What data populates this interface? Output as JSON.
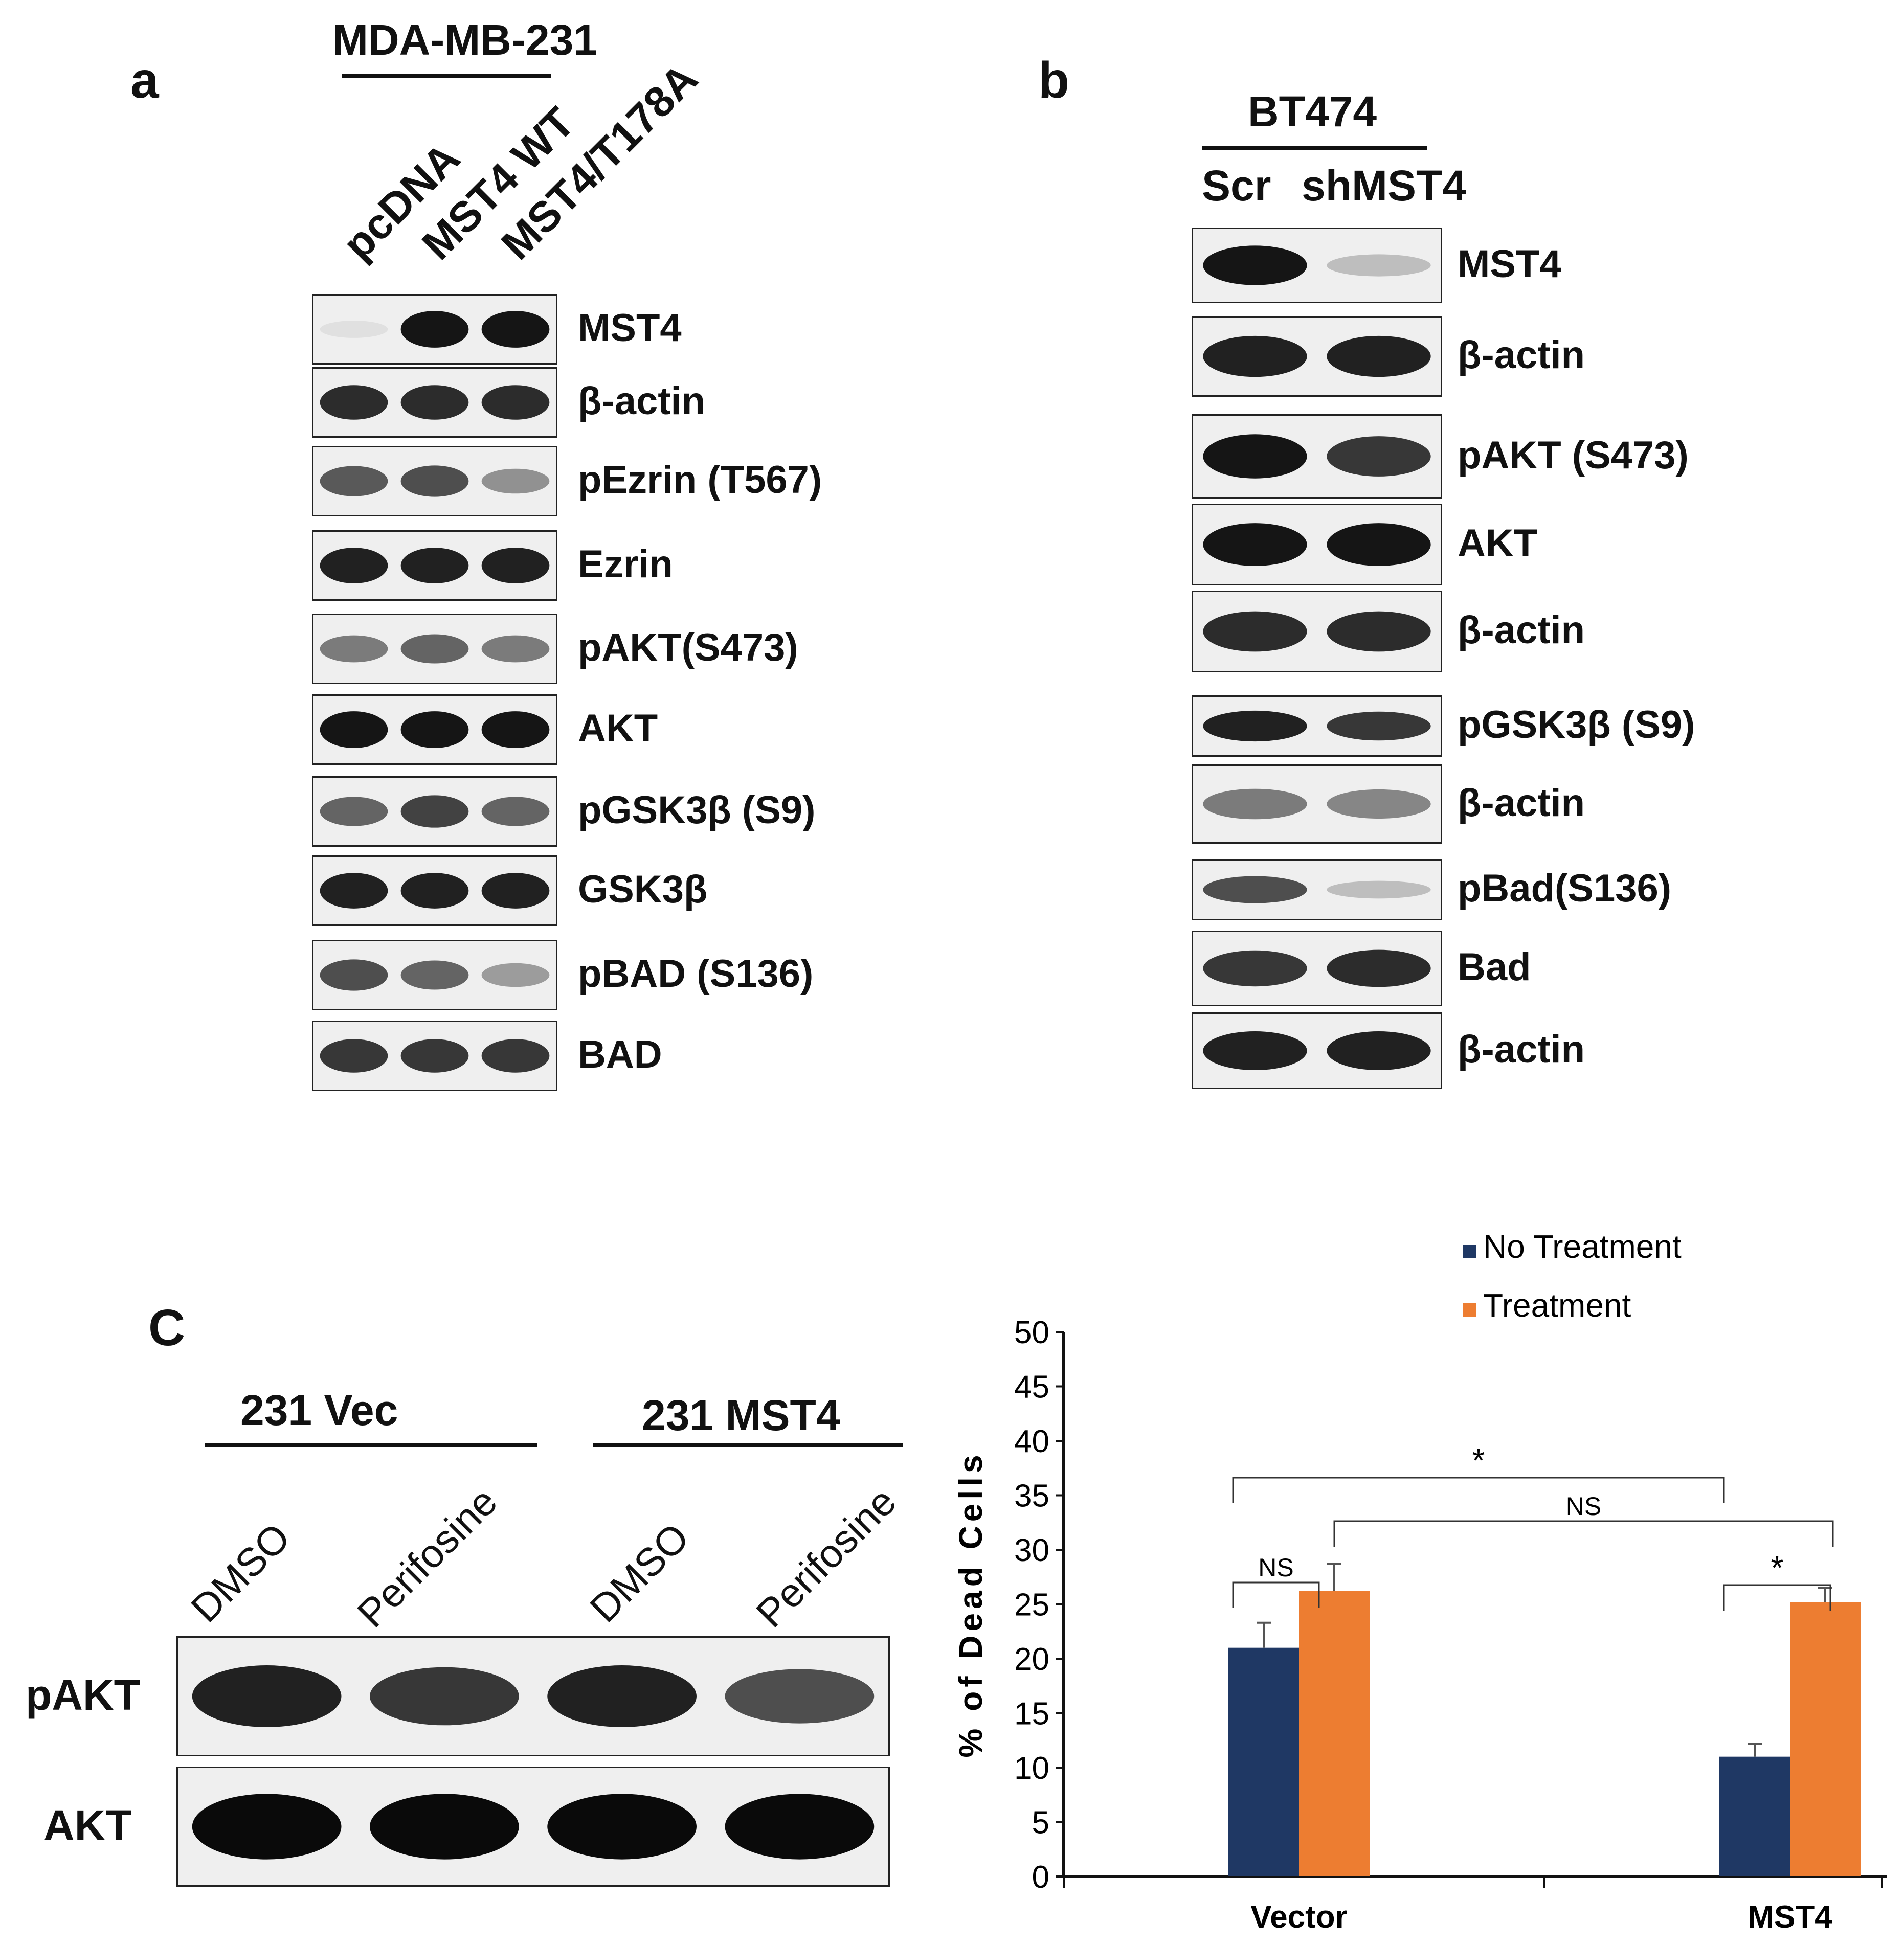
{
  "panel_a": {
    "letter": "a",
    "cell_line": "MDA-MB-231",
    "lanes": [
      "pcDNA",
      "MST4 WT",
      "MST4/T178A"
    ],
    "blots": [
      {
        "label": "MST4",
        "bands": [
          0.05,
          0.95,
          0.95
        ]
      },
      {
        "label": "β-actin",
        "bands": [
          0.85,
          0.85,
          0.85
        ]
      },
      {
        "label": "pEzrin (T567)",
        "bands": [
          0.65,
          0.7,
          0.4
        ]
      },
      {
        "label": "Ezrin",
        "bands": [
          0.9,
          0.9,
          0.9
        ]
      },
      {
        "label": "pAKT(S473)",
        "bands": [
          0.5,
          0.6,
          0.5
        ]
      },
      {
        "label": "AKT",
        "bands": [
          0.95,
          0.95,
          0.95
        ]
      },
      {
        "label": "pGSK3β (S9)",
        "bands": [
          0.6,
          0.75,
          0.6
        ]
      },
      {
        "label": "GSK3β",
        "bands": [
          0.9,
          0.9,
          0.9
        ]
      },
      {
        "label": "pBAD (S136)",
        "bands": [
          0.7,
          0.6,
          0.35
        ]
      },
      {
        "label": "BAD",
        "bands": [
          0.8,
          0.8,
          0.8
        ]
      }
    ]
  },
  "panel_b": {
    "letter": "b",
    "cell_line": "BT474",
    "lanes": [
      "Scr",
      "shMST4"
    ],
    "blots": [
      {
        "label": "MST4",
        "bands": [
          0.95,
          0.2
        ]
      },
      {
        "label": "β-actin",
        "bands": [
          0.9,
          0.9
        ]
      },
      {
        "label": "pAKT (S473)",
        "bands": [
          0.95,
          0.8
        ]
      },
      {
        "label": "AKT",
        "bands": [
          0.95,
          0.95
        ]
      },
      {
        "label": "β-actin",
        "bands": [
          0.85,
          0.85
        ]
      },
      {
        "label": "pGSK3β (S9)",
        "bands": [
          0.9,
          0.8
        ]
      },
      {
        "label": "β-actin",
        "bands": [
          0.5,
          0.45
        ]
      },
      {
        "label": "pBad(S136)",
        "bands": [
          0.7,
          0.2
        ]
      },
      {
        "label": "Bad",
        "bands": [
          0.8,
          0.85
        ]
      },
      {
        "label": "β-actin",
        "bands": [
          0.9,
          0.9
        ]
      }
    ]
  },
  "panel_c": {
    "letter": "C",
    "groups": [
      "231 Vec",
      "231 MST4"
    ],
    "lanes": [
      "DMSO",
      "Perifosine",
      "DMSO",
      "Perifosine"
    ],
    "rows": [
      {
        "label": "pAKT",
        "bands": [
          0.9,
          0.8,
          0.9,
          0.7
        ]
      },
      {
        "label": "AKT",
        "bands": [
          1.0,
          1.0,
          1.0,
          1.0
        ]
      }
    ]
  },
  "chart_data": {
    "type": "bar",
    "categories": [
      "Vector",
      "MST4"
    ],
    "series": [
      {
        "name": "No Treatment",
        "values": [
          21,
          11
        ],
        "errors": [
          2.3,
          1.2
        ],
        "color": "#1f3864"
      },
      {
        "name": "Treatment",
        "values": [
          26.2,
          25.2
        ],
        "errors": [
          2.5,
          1.3
        ],
        "color": "#ed7d31"
      }
    ],
    "ylabel": "% of Dead Cells",
    "xlabel": "",
    "ylim": [
      0,
      50
    ],
    "yticks": [
      0,
      5,
      10,
      15,
      20,
      25,
      30,
      35,
      40,
      45,
      50
    ],
    "legend_position": "top",
    "grid": false,
    "annotations": [
      {
        "text": "*",
        "between": [
          "Vector / No Treatment",
          "MST4 / No Treatment"
        ]
      },
      {
        "text": "NS",
        "between": [
          "Vector / Treatment",
          "MST4 / Treatment"
        ]
      },
      {
        "text": "NS",
        "between": [
          "Vector / No Treatment",
          "Vector / Treatment"
        ]
      },
      {
        "text": "*",
        "between": [
          "MST4 / No Treatment",
          "MST4 / Treatment"
        ]
      }
    ]
  }
}
